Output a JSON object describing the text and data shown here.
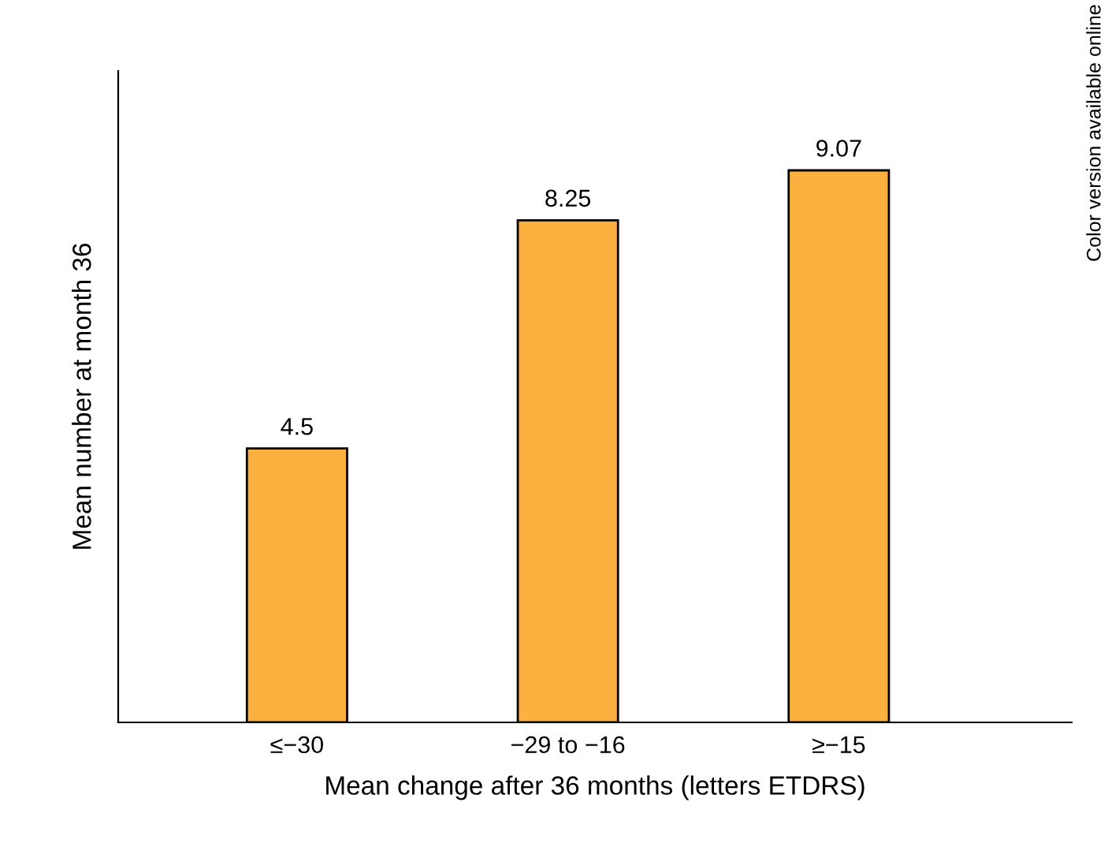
{
  "chart_data": {
    "type": "bar",
    "xlabel": "Mean change after 36 months (letters ETDRS)",
    "ylabel": "Mean number at month 36",
    "categories": [
      "≤−30",
      "−29 to −16",
      "≥−15"
    ],
    "values": [
      4.5,
      8.25,
      9.07
    ],
    "color": "#fbb040",
    "data_labels": true,
    "tick_labels": "x",
    "grid": false,
    "legend": false,
    "annotations": [
      "Color version available online"
    ]
  }
}
